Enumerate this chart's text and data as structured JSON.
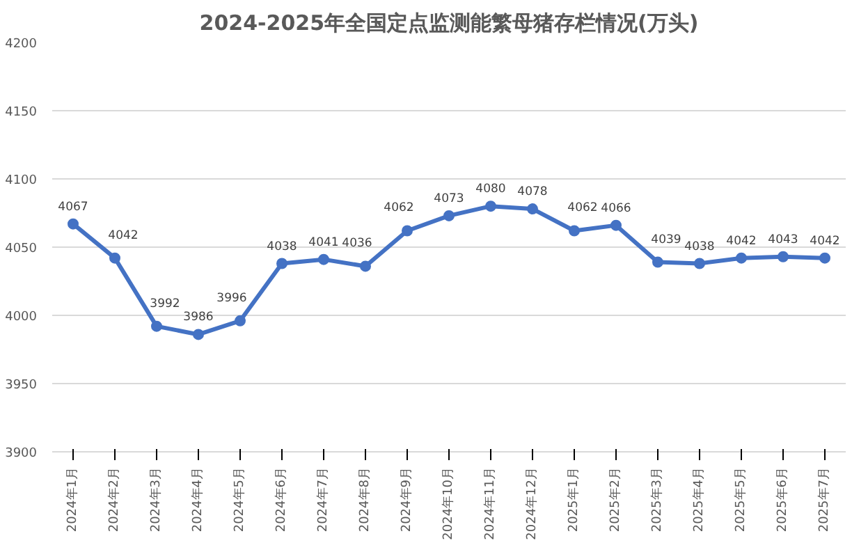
{
  "chart_data": {
    "type": "line",
    "title": "2024-2025年全国定点监测能繁母猪存栏情况(万头)",
    "categories": [
      "2024年1月",
      "2024年2月",
      "2024年3月",
      "2024年4月",
      "2024年5月",
      "2024年6月",
      "2024年7月",
      "2024年8月",
      "2024年9月",
      "2024年10月",
      "2024年11月",
      "2024年12月",
      "2025年1月",
      "2025年2月",
      "2025年3月",
      "2025年4月",
      "2025年5月",
      "2025年6月",
      "2025年7月"
    ],
    "series": [
      {
        "color": "#4472c4",
        "values": [
          4067,
          4042,
          3992,
          3986,
          3996,
          4038,
          4041,
          4036,
          4062,
          4073,
          4080,
          4078,
          4062,
          4066,
          4039,
          4038,
          4042,
          4043,
          4042
        ]
      }
    ],
    "ylim": [
      3900,
      4200
    ],
    "yticks": [
      3900,
      3950,
      4000,
      4050,
      4100,
      4150,
      4200
    ],
    "grid": "y",
    "marker": "circle",
    "line_style": "solid",
    "data_labels": true
  }
}
